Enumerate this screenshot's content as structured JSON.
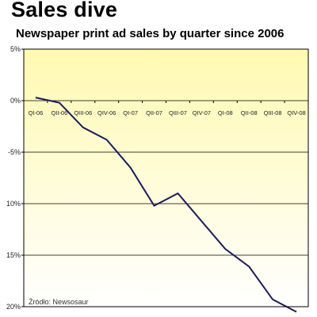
{
  "header": {
    "title": "Sales dive",
    "subtitle": "Newspaper print ad sales by quarter since 2006"
  },
  "source_note": "Źródło: Newsosaur",
  "colors": {
    "plot_top": "#fff9b0",
    "plot_bottom": "#ffffff",
    "line": "#1a1a5e",
    "grid": "#000000"
  },
  "chart_data": {
    "type": "line",
    "title": "Sales dive",
    "subtitle": "Newspaper print ad sales by quarter since 2006",
    "xlabel": "",
    "ylabel": "",
    "x": [
      "QI-06",
      "QII-06",
      "QIII-06",
      "QIV-06",
      "QI-07",
      "QII-07",
      "QIII-07",
      "QIV-07",
      "QI-08",
      "QII-08",
      "QIII-08",
      "QIV-08"
    ],
    "y_tick_labels": [
      "5%",
      "0%",
      "-5%",
      "10%",
      "15%",
      "20%"
    ],
    "ylim": [
      -20,
      5
    ],
    "y_ticks": [
      5,
      0,
      -5,
      -10,
      -15,
      -20
    ],
    "grid": true,
    "x_axis_at": 0,
    "series": [
      {
        "values": [
          0.3,
          -0.2,
          -2.6,
          -3.8,
          -6.5,
          -10.2,
          -9.0,
          -11.7,
          -14.4,
          -16.1,
          -19.3,
          -20.5
        ]
      }
    ]
  }
}
